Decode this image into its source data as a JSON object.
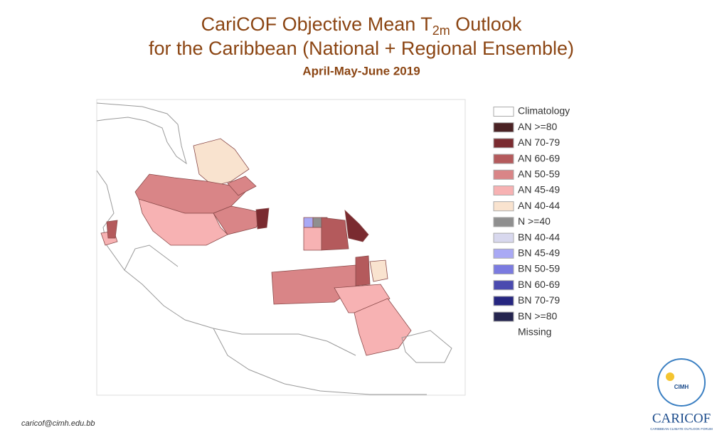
{
  "header": {
    "title_parts": [
      "CariCOF Objective Mean T",
      "2m",
      " Outlook"
    ],
    "title_line2": "for the Caribbean (National + Regional Ensemble)",
    "subtitle": "April-May-June 2019"
  },
  "legend": {
    "items": [
      {
        "label": "Climatology",
        "color": "#ffffff"
      },
      {
        "label": "AN  >=80",
        "color": "#4a2224"
      },
      {
        "label": "AN 70-79",
        "color": "#7a2b30"
      },
      {
        "label": "AN 60-69",
        "color": "#b45a5c"
      },
      {
        "label": "AN 50-59",
        "color": "#d98587"
      },
      {
        "label": "AN 45-49",
        "color": "#f7b2b3"
      },
      {
        "label": "AN 40-44",
        "color": "#f9e3cf"
      },
      {
        "label": "N >=40",
        "color": "#8f8f8f"
      },
      {
        "label": "BN 40-44",
        "color": "#d8d8ee"
      },
      {
        "label": "BN 45-49",
        "color": "#a9a9f5"
      },
      {
        "label": "BN 50-59",
        "color": "#7b7be0"
      },
      {
        "label": "BN 60-69",
        "color": "#4a4aaf"
      },
      {
        "label": "BN 70-79",
        "color": "#262680"
      },
      {
        "label": "BN  >=80",
        "color": "#25254f"
      },
      {
        "label": "Missing",
        "color": null
      }
    ]
  },
  "footer": {
    "email": "caricof@cimh.edu.bb"
  },
  "logo": {
    "org": "CIMH",
    "name": "CARICOF",
    "tagline": "CARIBBEAN CLIMATE OUTLOOK FORUM"
  }
}
